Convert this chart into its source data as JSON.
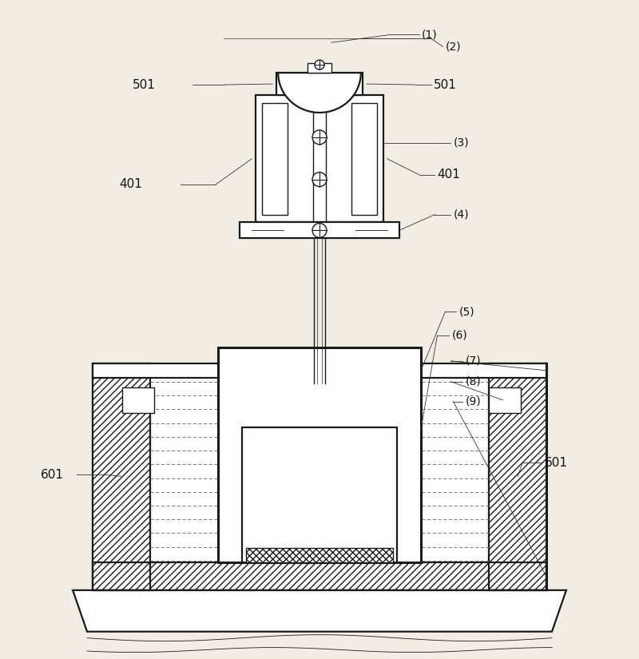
{
  "bg_color": "#f2ede4",
  "line_color": "#1a1a1a",
  "fig_width": 8.0,
  "fig_height": 8.25,
  "dpi": 100
}
